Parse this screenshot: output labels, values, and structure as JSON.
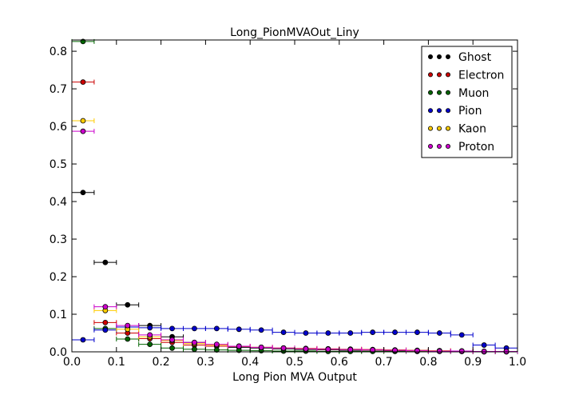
{
  "chart_data": {
    "type": "scatter",
    "title": "Long_PionMVAOut_Liny",
    "xlabel": "Long Pion MVA Output",
    "ylabel": "",
    "xlim": [
      0.0,
      1.0
    ],
    "ylim": [
      0.0,
      0.83
    ],
    "xticks": [
      "0.0",
      "0.1",
      "0.2",
      "0.3",
      "0.4",
      "0.5",
      "0.6",
      "0.7",
      "0.8",
      "0.9",
      "1.0"
    ],
    "yticks": [
      "0.0",
      "0.1",
      "0.2",
      "0.3",
      "0.4",
      "0.5",
      "0.6",
      "0.7",
      "0.8"
    ],
    "legend_position": "top-right",
    "grid": false,
    "bin_width": 0.05,
    "x": [
      0.025,
      0.075,
      0.125,
      0.175,
      0.225,
      0.275,
      0.325,
      0.375,
      0.425,
      0.475,
      0.525,
      0.575,
      0.625,
      0.675,
      0.725,
      0.775,
      0.825,
      0.875,
      0.925,
      0.975
    ],
    "series": [
      {
        "name": "Ghost",
        "color": "#000000",
        "values": [
          0.424,
          0.238,
          0.125,
          0.07,
          0.04,
          0.025,
          0.018,
          0.012,
          0.01,
          0.008,
          0.006,
          0.005,
          0.004,
          0.004,
          0.003,
          0.002,
          0.002,
          0.001,
          0.001,
          0.001
        ]
      },
      {
        "name": "Electron",
        "color": "#cc0000",
        "values": [
          0.718,
          0.078,
          0.05,
          0.035,
          0.025,
          0.018,
          0.015,
          0.014,
          0.012,
          0.01,
          0.009,
          0.008,
          0.007,
          0.006,
          0.005,
          0.004,
          0.003,
          0.002,
          0.001,
          0.001
        ]
      },
      {
        "name": "Muon",
        "color": "#006400",
        "values": [
          0.826,
          0.062,
          0.034,
          0.02,
          0.01,
          0.007,
          0.005,
          0.004,
          0.003,
          0.002,
          0.002,
          0.001,
          0.001,
          0.001,
          0.001,
          0.001,
          0.001,
          0.001,
          0.0,
          0.0
        ]
      },
      {
        "name": "Pion",
        "color": "#0000cc",
        "values": [
          0.032,
          0.058,
          0.066,
          0.064,
          0.062,
          0.062,
          0.062,
          0.06,
          0.058,
          0.052,
          0.05,
          0.05,
          0.05,
          0.052,
          0.052,
          0.052,
          0.05,
          0.045,
          0.018,
          0.01
        ]
      },
      {
        "name": "Kaon",
        "color": "#ffcc00",
        "values": [
          0.615,
          0.11,
          0.06,
          0.04,
          0.03,
          0.022,
          0.018,
          0.015,
          0.012,
          0.01,
          0.008,
          0.007,
          0.006,
          0.005,
          0.004,
          0.003,
          0.003,
          0.002,
          0.001,
          0.001
        ]
      },
      {
        "name": "Proton",
        "color": "#cc00cc",
        "values": [
          0.587,
          0.12,
          0.07,
          0.045,
          0.032,
          0.025,
          0.02,
          0.015,
          0.012,
          0.01,
          0.008,
          0.007,
          0.006,
          0.005,
          0.004,
          0.003,
          0.002,
          0.002,
          0.001,
          0.001
        ]
      }
    ]
  }
}
